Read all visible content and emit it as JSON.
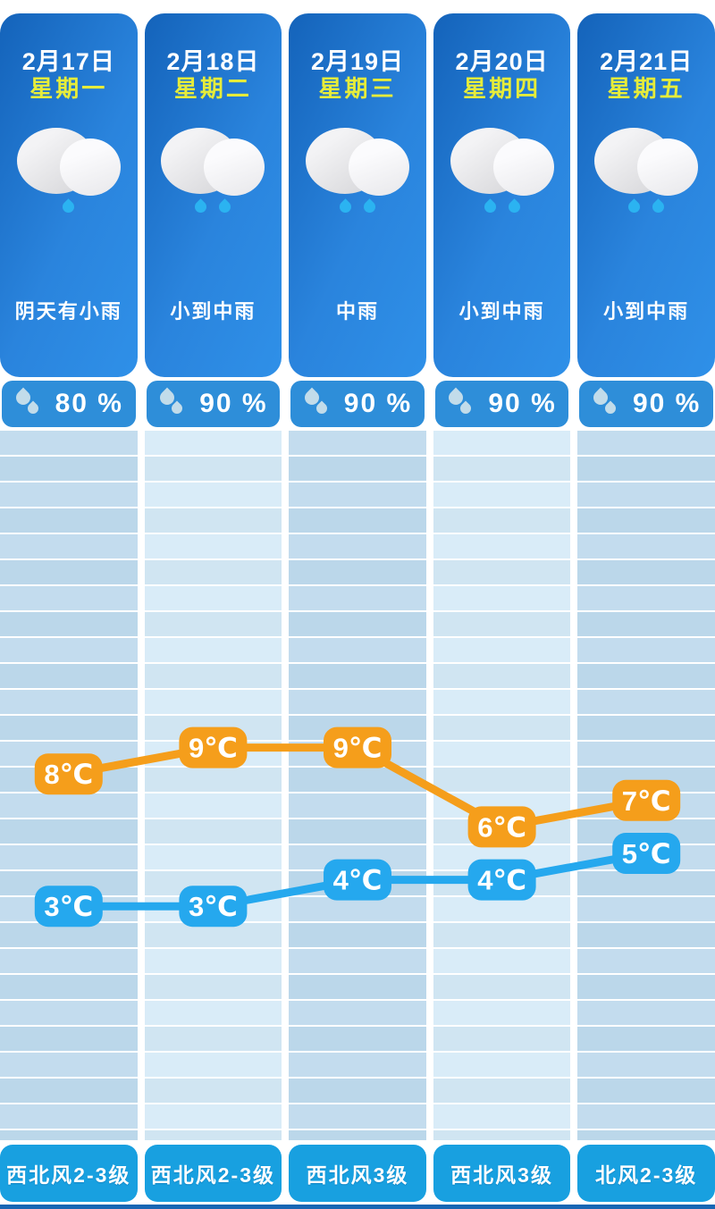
{
  "days": [
    {
      "date": "2月17日",
      "weekday": "星期一",
      "condition": "阴天有小雨",
      "precip": "80 %",
      "wind": "西北风2-3级",
      "rain_drops": 1
    },
    {
      "date": "2月18日",
      "weekday": "星期二",
      "condition": "小到中雨",
      "precip": "90 %",
      "wind": "西北风2-3级",
      "rain_drops": 2
    },
    {
      "date": "2月19日",
      "weekday": "星期三",
      "condition": "中雨",
      "precip": "90 %",
      "wind": "西北风3级",
      "rain_drops": 2
    },
    {
      "date": "2月20日",
      "weekday": "星期四",
      "condition": "小到中雨",
      "precip": "90 %",
      "wind": "西北风3级",
      "rain_drops": 2
    },
    {
      "date": "2月21日",
      "weekday": "星期五",
      "condition": "小到中雨",
      "precip": "90 %",
      "wind": "北风2-3级",
      "rain_drops": 2
    }
  ],
  "chart_data": {
    "type": "line",
    "categories": [
      "2月17日",
      "2月18日",
      "2月19日",
      "2月20日",
      "2月21日"
    ],
    "unit": "℃",
    "series": [
      {
        "name": "high",
        "color": "#f59e1b",
        "values": [
          8,
          9,
          9,
          6,
          7
        ]
      },
      {
        "name": "low",
        "color": "#25a8ee",
        "values": [
          3,
          3,
          4,
          4,
          5
        ]
      }
    ],
    "ylim": [
      0,
      12
    ],
    "grid": true,
    "legend": "none"
  },
  "theme": {
    "card_gradient_start": "#1463ba",
    "card_gradient_end": "#2f90e8",
    "weekday_color": "#e6ec3a",
    "pill_bg": "#2e8ed9",
    "pill_drop": "#c2dcea",
    "cloud_drop": "#2bb3f1",
    "wind_bg": "#18a0e0",
    "bottom_strip": "#1866b4",
    "high_color": "#f59e1b",
    "low_color": "#25a8ee"
  }
}
